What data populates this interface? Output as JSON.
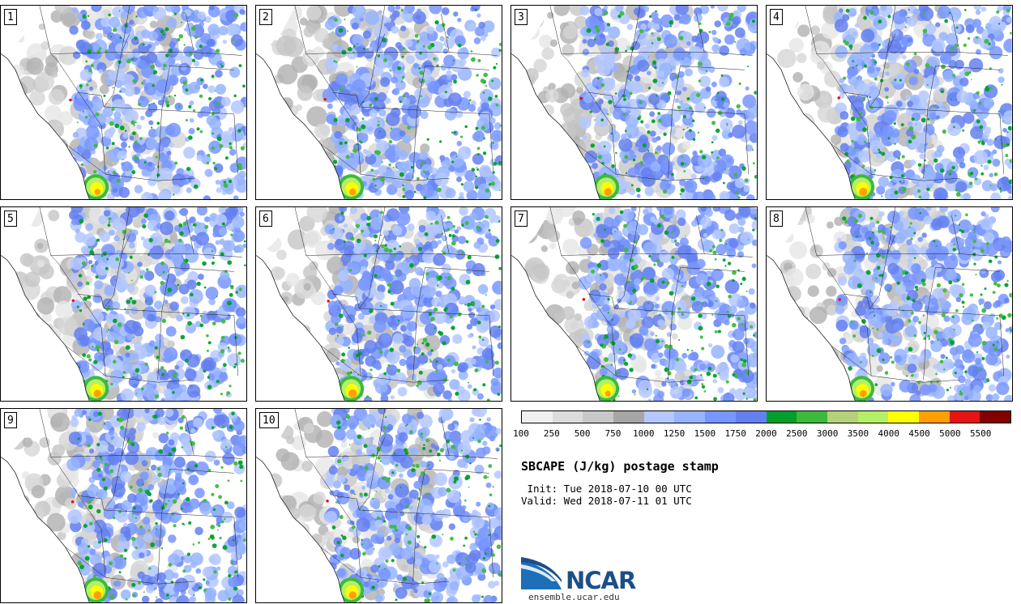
{
  "members": [
    {
      "label": "1"
    },
    {
      "label": "2"
    },
    {
      "label": "3"
    },
    {
      "label": "4"
    },
    {
      "label": "5"
    },
    {
      "label": "6"
    },
    {
      "label": "7"
    },
    {
      "label": "8"
    },
    {
      "label": "9"
    },
    {
      "label": "10"
    }
  ],
  "colorbar": {
    "colors": [
      "#f0f0f0",
      "#dcdcdc",
      "#c8c8c8",
      "#a6a6a6",
      "#b4c8ff",
      "#96b4ff",
      "#7896ff",
      "#6480f0",
      "#00a02a",
      "#3cba3c",
      "#b4d27a",
      "#b4f064",
      "#ffff00",
      "#ffa000",
      "#e61414",
      "#820000"
    ],
    "tick_labels": [
      "100",
      "250",
      "500",
      "750",
      "1000",
      "1250",
      "1500",
      "1750",
      "2000",
      "2500",
      "3000",
      "3500",
      "4000",
      "4500",
      "5000",
      "5500"
    ]
  },
  "info": {
    "title": "SBCAPE (J/kg) postage stamp",
    "init": " Init: Tue 2018-07-10 00 UTC",
    "valid": "Valid: Wed 2018-07-11 01 UTC"
  },
  "logo": {
    "text": "NCAR",
    "site": "ensemble.ucar.edu"
  }
}
